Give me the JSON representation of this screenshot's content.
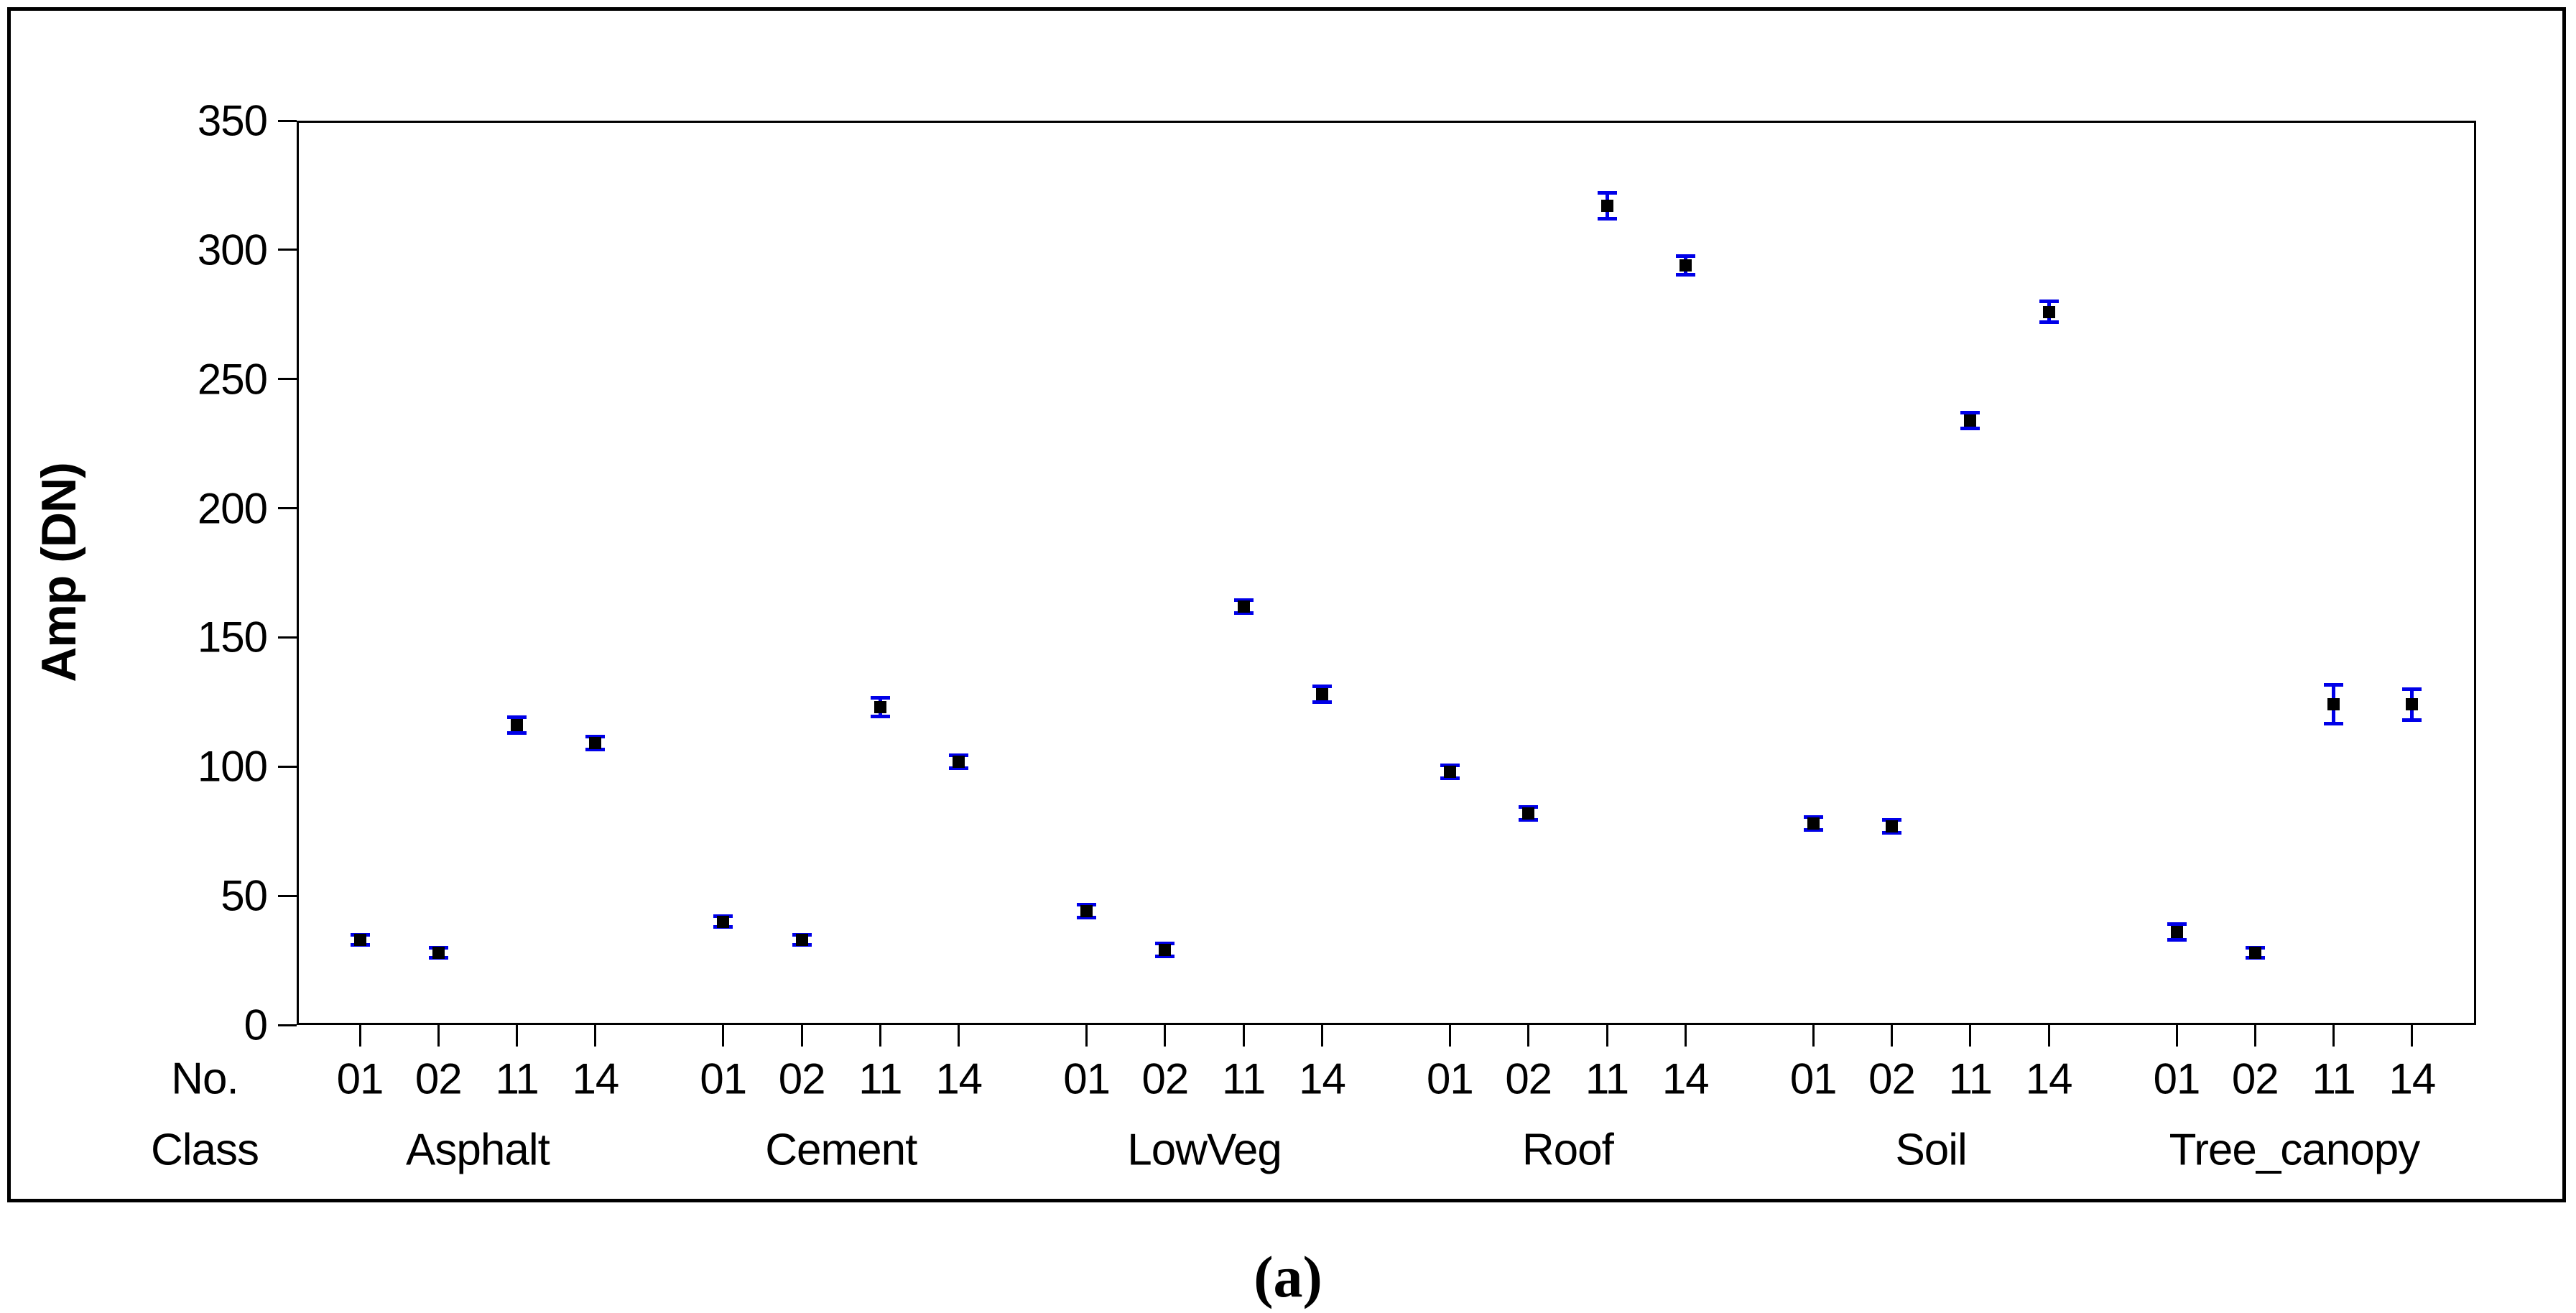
{
  "figure": {
    "caption": "(a)"
  },
  "axis": {
    "y_title": "Amp (DN)",
    "row_labels": {
      "no": "No.",
      "class": "Class"
    }
  },
  "colors": {
    "marker": "#000000",
    "error_bar": "#0000e8",
    "axis_line": "#000000",
    "background": "#ffffff"
  },
  "chart_data": {
    "type": "scatter",
    "title": "",
    "ylabel": "Amp (DN)",
    "ylim": [
      0,
      350
    ],
    "y_ticks": [
      0,
      50,
      100,
      150,
      200,
      250,
      300,
      350
    ],
    "grid": false,
    "legend": false,
    "marker_style": "filled-square-with-error-bars",
    "x_structure": "grouped: 6 land-cover classes x 4 sensor numbers",
    "groups": [
      {
        "class": "Asphalt",
        "points": [
          {
            "no": "01",
            "amp": 33,
            "err": 2.0
          },
          {
            "no": "02",
            "amp": 28,
            "err": 2.0
          },
          {
            "no": "11",
            "amp": 116,
            "err": 3.0
          },
          {
            "no": "14",
            "amp": 109,
            "err": 2.5
          }
        ]
      },
      {
        "class": "Cement",
        "points": [
          {
            "no": "01",
            "amp": 40,
            "err": 2.0
          },
          {
            "no": "02",
            "amp": 33,
            "err": 2.0
          },
          {
            "no": "11",
            "amp": 123,
            "err": 3.5
          },
          {
            "no": "14",
            "amp": 102,
            "err": 2.5
          }
        ]
      },
      {
        "class": "LowVeg",
        "points": [
          {
            "no": "01",
            "amp": 44,
            "err": 2.5
          },
          {
            "no": "02",
            "amp": 29,
            "err": 2.5
          },
          {
            "no": "11",
            "amp": 162,
            "err": 2.5
          },
          {
            "no": "14",
            "amp": 128,
            "err": 3.0
          }
        ]
      },
      {
        "class": "Roof",
        "points": [
          {
            "no": "01",
            "amp": 98,
            "err": 2.5
          },
          {
            "no": "02",
            "amp": 82,
            "err": 2.5
          },
          {
            "no": "11",
            "amp": 317,
            "err": 5.0
          },
          {
            "no": "14",
            "amp": 294,
            "err": 3.5
          }
        ]
      },
      {
        "class": "Soil",
        "points": [
          {
            "no": "01",
            "amp": 78,
            "err": 2.5
          },
          {
            "no": "02",
            "amp": 77,
            "err": 2.5
          },
          {
            "no": "11",
            "amp": 234,
            "err": 3.0
          },
          {
            "no": "14",
            "amp": 276,
            "err": 4.0
          }
        ]
      },
      {
        "class": "Tree_canopy",
        "points": [
          {
            "no": "01",
            "amp": 36,
            "err": 3.0
          },
          {
            "no": "02",
            "amp": 28,
            "err": 2.0
          },
          {
            "no": "11",
            "amp": 124,
            "err": 7.5
          },
          {
            "no": "14",
            "amp": 124,
            "err": 6.0
          }
        ]
      }
    ]
  }
}
